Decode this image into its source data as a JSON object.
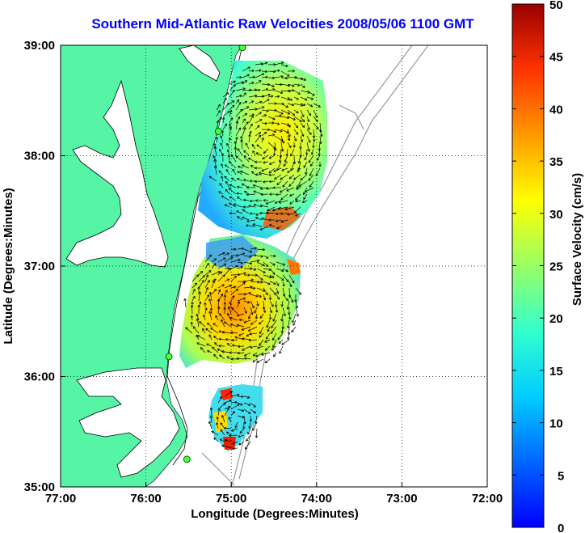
{
  "title": "Southern Mid-Atlantic Raw Velocities 2008/05/06 1100 GMT",
  "map": {
    "xlabel": "Longitude (Degrees:Minutes)",
    "ylabel": "Latitude (Degrees:Minutes)",
    "x_ticks": [
      "77:00",
      "76:00",
      "75:00",
      "74:00",
      "73:00",
      "72:00"
    ],
    "y_ticks": [
      "39:00",
      "38:00",
      "37:00",
      "36:00",
      "35:00"
    ],
    "lon_range": [
      -77,
      -72
    ],
    "lat_range": [
      35,
      39
    ],
    "land_color": "#55f5a5",
    "grid": "dotted"
  },
  "colorbar": {
    "label": "Surface Velocity (cm/s)",
    "ticks": [
      "50",
      "45",
      "40",
      "35",
      "30",
      "25",
      "20",
      "15",
      "10",
      "5",
      "0"
    ],
    "range": [
      0,
      50
    ],
    "colormap": "jet"
  },
  "stations": [
    {
      "lon": -74.87,
      "lat": 38.98
    },
    {
      "lon": -75.15,
      "lat": 38.22
    },
    {
      "lon": -75.73,
      "lat": 36.18
    },
    {
      "lon": -75.52,
      "lat": 35.25
    }
  ]
}
